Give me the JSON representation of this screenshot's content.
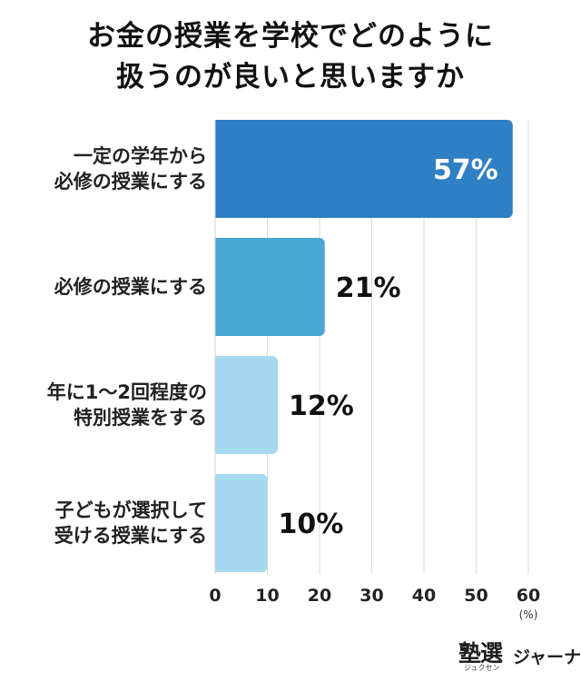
{
  "title_lines": [
    "お金の授業を学校でどのように",
    "扱うのが良いと思いますか"
  ],
  "chart_data": {
    "type": "bar",
    "orientation": "horizontal",
    "title": "お金の授業を学校でどのように扱うのが良いと思いますか",
    "categories": [
      [
        "一定の学年から",
        "必修の授業にする"
      ],
      [
        "必修の授業にする"
      ],
      [
        "年に1〜2回程度の",
        "特別授業をする"
      ],
      [
        "子どもが選択して",
        "受ける授業にする"
      ]
    ],
    "values": [
      57,
      21,
      12,
      10
    ],
    "value_labels": [
      "57%",
      "21%",
      "12%",
      "10%"
    ],
    "bar_colors": [
      "#2f7fc4",
      "#4aa6d4",
      "#a6d9f0",
      "#a6d9f0"
    ],
    "value_label_colors": [
      "#ffffff",
      "#111111",
      "#111111",
      "#111111"
    ],
    "value_label_inside": [
      true,
      false,
      false,
      false
    ],
    "xlim": [
      0,
      60
    ],
    "xticks": [
      "0",
      "10",
      "20",
      "30",
      "40",
      "50",
      "60"
    ],
    "xticks_values": [
      0,
      10,
      20,
      30,
      40,
      50,
      60
    ],
    "unit": "(%)",
    "grid": true
  },
  "logo": {
    "mark": "塾選",
    "kana": "ジュクセン",
    "name": "ジャーナル"
  }
}
